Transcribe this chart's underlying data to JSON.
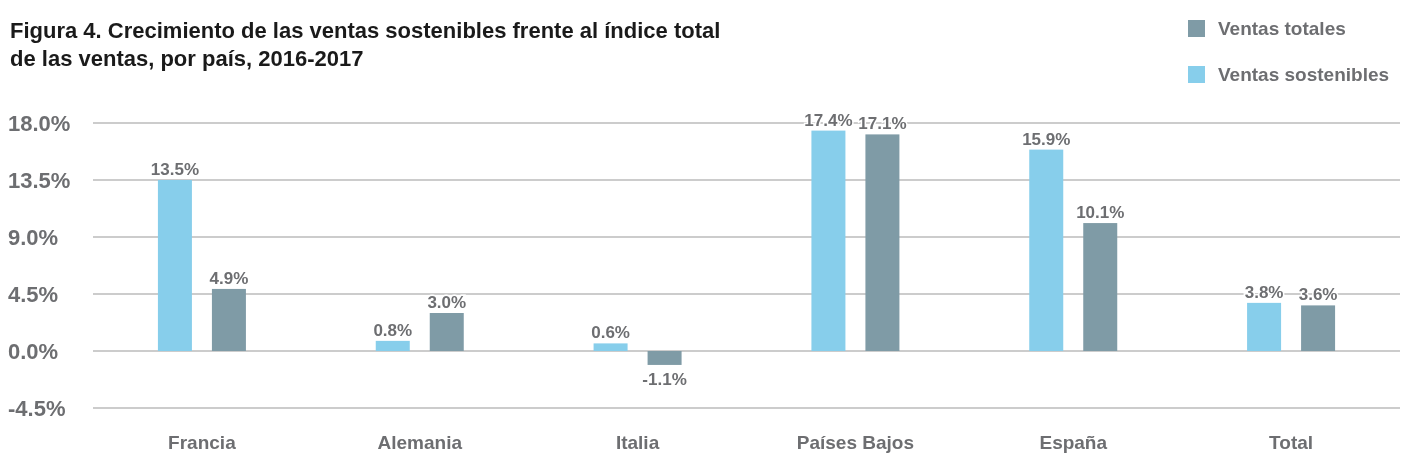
{
  "chart_data": {
    "type": "bar",
    "title": "Figura 4. Crecimiento de las ventas sostenibles frente al índice total de las ventas, por país, 2016-2017",
    "categories": [
      "Francia",
      "Alemania",
      "Italia",
      "Países Bajos",
      "España",
      "Total"
    ],
    "series": [
      {
        "name": "Ventas sostenibles",
        "color": "#87ceeb",
        "values": [
          13.5,
          0.8,
          0.6,
          17.4,
          15.9,
          3.8
        ],
        "value_labels": [
          "13.5%",
          "0.8%",
          "0.6%",
          "17.4%",
          "15.9%",
          "3.8%"
        ]
      },
      {
        "name": "Ventas totales",
        "color": "#7f9ba6",
        "values": [
          4.9,
          3.0,
          -1.1,
          17.1,
          10.1,
          3.6
        ],
        "value_labels": [
          "4.9%",
          "3.0%",
          "-1.1%",
          "17.1%",
          "10.1%",
          "3.6%"
        ]
      }
    ],
    "ylim": [
      -4.5,
      18
    ],
    "yticks": [
      {
        "value": -4.5,
        "label": "-4.5%"
      },
      {
        "value": 0,
        "label": "0.0%"
      },
      {
        "value": 4.5,
        "label": "4.5%"
      },
      {
        "value": 9,
        "label": "9.0%"
      },
      {
        "value": 13.5,
        "label": "13.5%"
      },
      {
        "value": 18,
        "label": "18.0%"
      }
    ],
    "grid": "y",
    "legend": "top right"
  }
}
